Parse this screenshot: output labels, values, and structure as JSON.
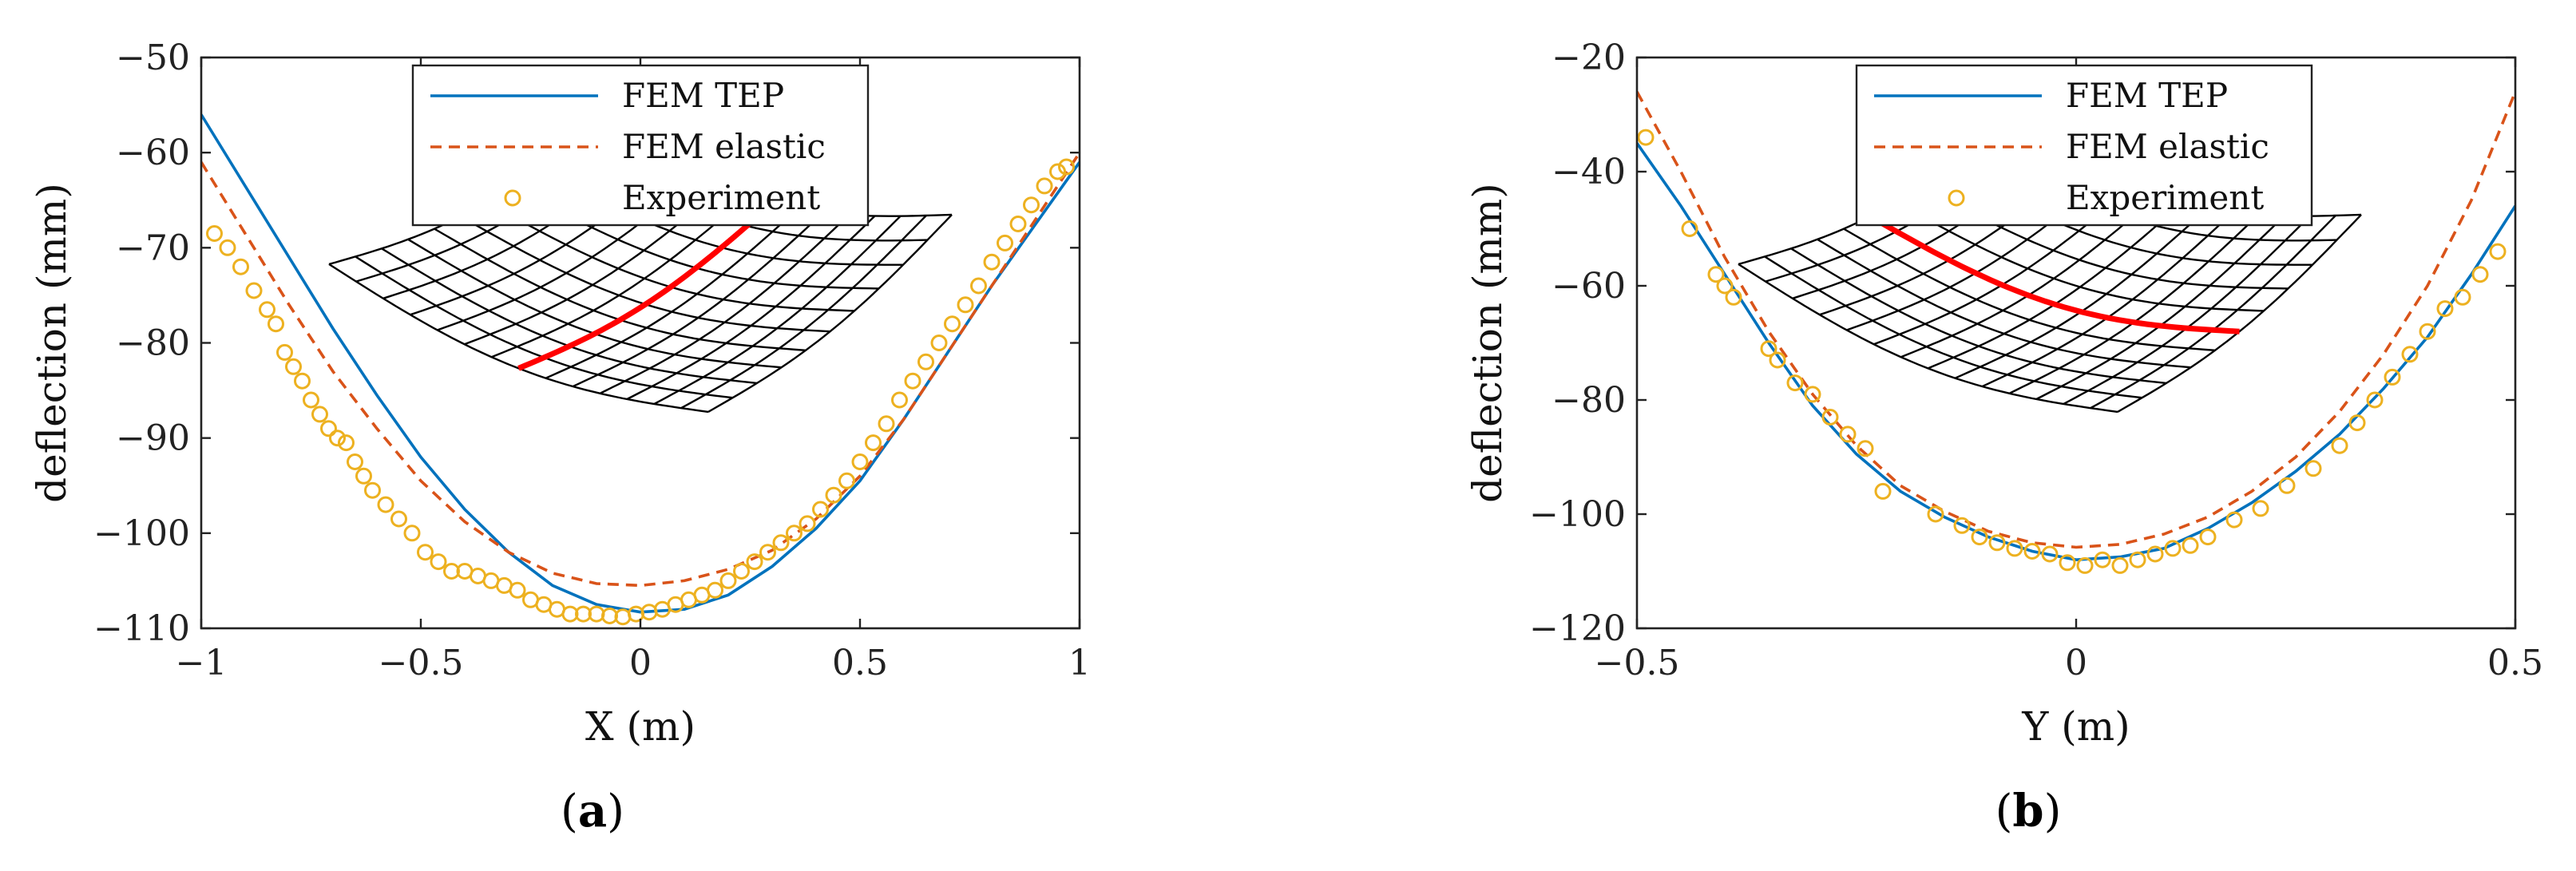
{
  "colors": {
    "tep": "#0072BD",
    "elastic": "#D95319",
    "exp": "#EDB120",
    "mesh": "#000000",
    "highlight": "#FF0000"
  },
  "chart_data": [
    {
      "type": "line",
      "panel_label": "a",
      "xlabel": "X (m)",
      "ylabel": "deflection (mm)",
      "xlim": [
        -1,
        1
      ],
      "ylim": [
        -110,
        -50
      ],
      "xticks": [
        -1,
        -0.5,
        0,
        0.5,
        1
      ],
      "xtick_labels": [
        "−1",
        "−0.5",
        "0",
        "0.5",
        "1"
      ],
      "yticks": [
        -110,
        -100,
        -90,
        -80,
        -70,
        -60,
        -50
      ],
      "ytick_labels": [
        "−110",
        "−100",
        "−90",
        "−80",
        "−70",
        "−60",
        "−50"
      ],
      "grid": false,
      "legend_position": "top-center",
      "inset": {
        "highlight_direction": "x"
      },
      "series": [
        {
          "name": "FEM TEP",
          "style": "solid",
          "color_key": "tep",
          "x": [
            -1,
            -0.9,
            -0.8,
            -0.7,
            -0.6,
            -0.5,
            -0.4,
            -0.3,
            -0.2,
            -0.1,
            0,
            0.1,
            0.2,
            0.3,
            0.4,
            0.5,
            0.6,
            0.7,
            0.8,
            0.9,
            1
          ],
          "y": [
            -56,
            -63.5,
            -71,
            -78.5,
            -85.5,
            -92,
            -97.5,
            -102,
            -105.5,
            -107.5,
            -108.3,
            -108,
            -106.5,
            -103.5,
            -99.5,
            -94.5,
            -88,
            -81,
            -74,
            -67.5,
            -61
          ]
        },
        {
          "name": "FEM elastic",
          "style": "dashed",
          "color_key": "elastic",
          "x": [
            -1,
            -0.9,
            -0.8,
            -0.7,
            -0.6,
            -0.5,
            -0.4,
            -0.3,
            -0.2,
            -0.1,
            0,
            0.1,
            0.2,
            0.3,
            0.4,
            0.5,
            0.6,
            0.7,
            0.8,
            0.9,
            1
          ],
          "y": [
            -61,
            -68.5,
            -76,
            -83,
            -89,
            -94.5,
            -98.8,
            -102,
            -104.2,
            -105.3,
            -105.5,
            -105,
            -103.8,
            -101.8,
            -98.5,
            -94,
            -88,
            -81,
            -74,
            -67,
            -60
          ]
        },
        {
          "name": "Experiment",
          "style": "marker",
          "color_key": "exp",
          "x": [
            -0.97,
            -0.94,
            -0.91,
            -0.88,
            -0.85,
            -0.83,
            -0.81,
            -0.79,
            -0.77,
            -0.75,
            -0.73,
            -0.71,
            -0.69,
            -0.67,
            -0.65,
            -0.63,
            -0.61,
            -0.58,
            -0.55,
            -0.52,
            -0.49,
            -0.46,
            -0.43,
            -0.4,
            -0.37,
            -0.34,
            -0.31,
            -0.28,
            -0.25,
            -0.22,
            -0.19,
            -0.16,
            -0.13,
            -0.1,
            -0.07,
            -0.04,
            -0.01,
            0.02,
            0.05,
            0.08,
            0.11,
            0.14,
            0.17,
            0.2,
            0.23,
            0.26,
            0.29,
            0.32,
            0.35,
            0.38,
            0.41,
            0.44,
            0.47,
            0.5,
            0.53,
            0.56,
            0.59,
            0.62,
            0.65,
            0.68,
            0.71,
            0.74,
            0.77,
            0.8,
            0.83,
            0.86,
            0.89,
            0.92,
            0.95,
            0.97
          ],
          "y": [
            -68.5,
            -70,
            -72,
            -74.5,
            -76.5,
            -78,
            -81,
            -82.5,
            -84,
            -86,
            -87.5,
            -89,
            -90,
            -90.5,
            -92.5,
            -94,
            -95.5,
            -97,
            -98.5,
            -100,
            -102,
            -103,
            -104,
            -104,
            -104.5,
            -105,
            -105.5,
            -106,
            -107,
            -107.5,
            -108,
            -108.5,
            -108.5,
            -108.5,
            -108.7,
            -108.8,
            -108.5,
            -108.3,
            -108,
            -107.5,
            -107,
            -106.5,
            -106,
            -105,
            -104,
            -103,
            -102,
            -101,
            -100,
            -99,
            -97.5,
            -96,
            -94.5,
            -92.5,
            -90.5,
            -88.5,
            -86,
            -84,
            -82,
            -80,
            -78,
            -76,
            -74,
            -71.5,
            -69.5,
            -67.5,
            -65.5,
            -63.5,
            -62,
            -61.5
          ]
        }
      ]
    },
    {
      "type": "line",
      "panel_label": "b",
      "xlabel": "Y (m)",
      "ylabel": "deflection (mm)",
      "xlim": [
        -0.5,
        0.5
      ],
      "ylim": [
        -120,
        -20
      ],
      "xticks": [
        -0.5,
        0,
        0.5
      ],
      "xtick_labels": [
        "−0.5",
        "0",
        "0.5"
      ],
      "yticks": [
        -120,
        -100,
        -80,
        -60,
        -40,
        -20
      ],
      "ytick_labels": [
        "−120",
        "−100",
        "−80",
        "−60",
        "−40",
        "−20"
      ],
      "grid": false,
      "legend_position": "top-center",
      "inset": {
        "highlight_direction": "y"
      },
      "series": [
        {
          "name": "FEM TEP",
          "style": "solid",
          "color_key": "tep",
          "x": [
            -0.5,
            -0.45,
            -0.4,
            -0.35,
            -0.3,
            -0.25,
            -0.2,
            -0.15,
            -0.1,
            -0.05,
            0,
            0.05,
            0.1,
            0.15,
            0.2,
            0.25,
            0.3,
            0.35,
            0.4,
            0.45,
            0.5
          ],
          "y": [
            -35,
            -46,
            -58,
            -70,
            -81,
            -89.5,
            -96,
            -100.5,
            -104,
            -106.5,
            -108,
            -107.5,
            -106,
            -102.5,
            -98,
            -92.5,
            -86,
            -78,
            -69,
            -58,
            -46
          ]
        },
        {
          "name": "FEM elastic",
          "style": "dashed",
          "color_key": "elastic",
          "x": [
            -0.5,
            -0.45,
            -0.4,
            -0.35,
            -0.3,
            -0.25,
            -0.2,
            -0.15,
            -0.1,
            -0.05,
            0,
            0.05,
            0.1,
            0.15,
            0.2,
            0.25,
            0.3,
            0.35,
            0.4,
            0.45,
            0.5
          ],
          "y": [
            -26,
            -40,
            -55,
            -68,
            -79,
            -88,
            -95,
            -99.5,
            -103,
            -105,
            -105.8,
            -105.3,
            -103.5,
            -100.5,
            -96,
            -90,
            -82,
            -72,
            -60,
            -45,
            -26
          ]
        },
        {
          "name": "Experiment",
          "style": "marker",
          "color_key": "exp",
          "x": [
            -0.49,
            -0.44,
            -0.41,
            -0.4,
            -0.39,
            -0.35,
            -0.34,
            -0.32,
            -0.3,
            -0.28,
            -0.26,
            -0.24,
            -0.22,
            -0.16,
            -0.13,
            -0.11,
            -0.09,
            -0.07,
            -0.05,
            -0.03,
            -0.01,
            0.01,
            0.03,
            0.05,
            0.07,
            0.09,
            0.11,
            0.13,
            0.15,
            0.18,
            0.21,
            0.24,
            0.27,
            0.3,
            0.32,
            0.34,
            0.36,
            0.38,
            0.4,
            0.42,
            0.44,
            0.46,
            0.48
          ],
          "y": [
            -34,
            -50,
            -58,
            -60,
            -62,
            -71,
            -73,
            -77,
            -79,
            -83,
            -86,
            -88.5,
            -96,
            -100,
            -102,
            -104,
            -105,
            -106,
            -106.5,
            -107,
            -108.5,
            -109,
            -108,
            -109,
            -108,
            -107,
            -106,
            -105.5,
            -104,
            -101,
            -99,
            -95,
            -92,
            -88,
            -84,
            -80,
            -76,
            -72,
            -68,
            -64,
            -62,
            -58,
            -54
          ]
        }
      ]
    }
  ]
}
